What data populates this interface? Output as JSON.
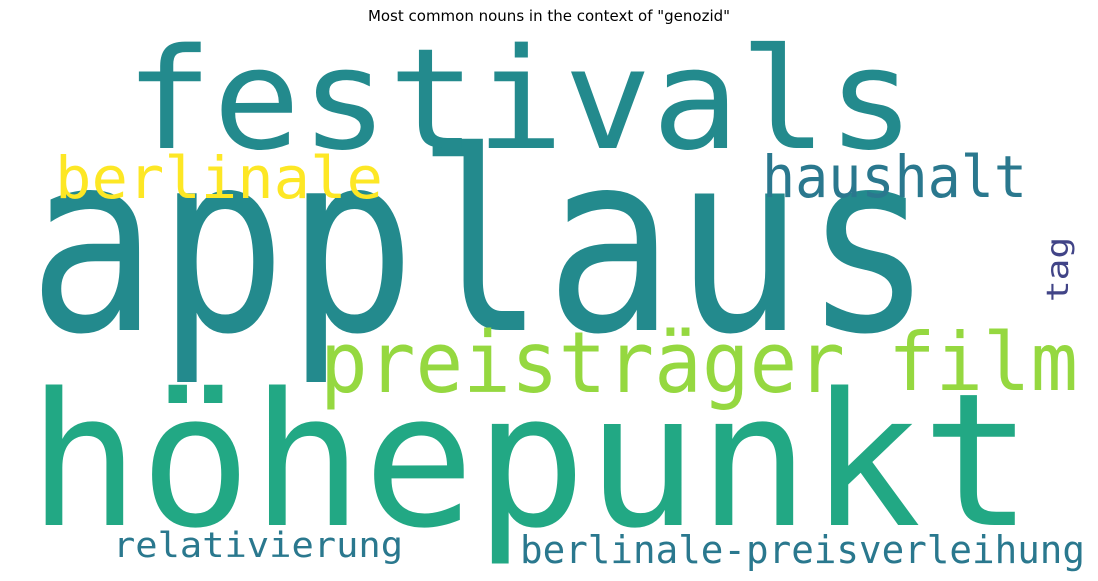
{
  "chart_data": {
    "type": "wordcloud",
    "title": "Most common nouns in the context of \"genozid\"",
    "words": [
      {
        "text": "applaus",
        "rank": 1,
        "color": "#238a8d"
      },
      {
        "text": "höhepunkt",
        "rank": 2,
        "color": "#22a884"
      },
      {
        "text": "festivals",
        "rank": 3,
        "color": "#238a8d"
      },
      {
        "text": "preisträger",
        "rank": 4,
        "color": "#95d840"
      },
      {
        "text": "film",
        "rank": 5,
        "color": "#95d840"
      },
      {
        "text": "haushalt",
        "rank": 6,
        "color": "#2a788e"
      },
      {
        "text": "berlinale",
        "rank": 7,
        "color": "#fde725"
      },
      {
        "text": "berlinale-preisverleihung",
        "rank": 8,
        "color": "#2a788e"
      },
      {
        "text": "relativierung",
        "rank": 9,
        "color": "#2a788e"
      },
      {
        "text": "tag",
        "rank": 10,
        "color": "#414487"
      }
    ]
  }
}
